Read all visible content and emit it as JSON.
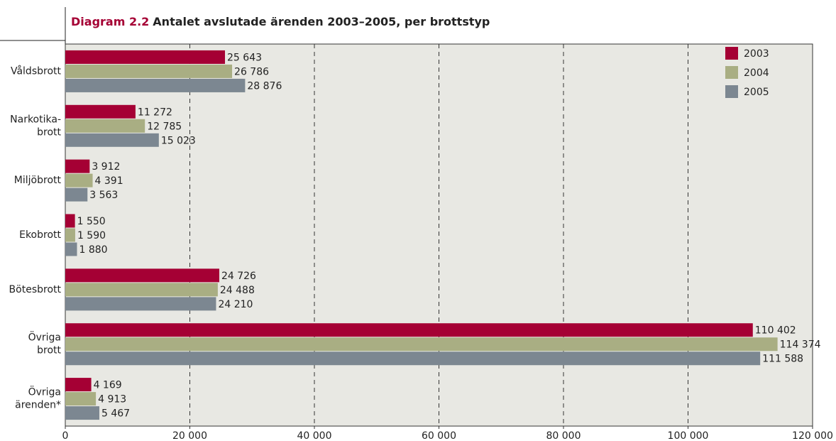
{
  "chart_data": {
    "type": "barh",
    "title_prefix": "Diagram 2.2",
    "title": "Antalet avslutade ärenden 2003–2005, per brottstyp",
    "categories": [
      [
        "Våldsbrott"
      ],
      [
        "Narkotika-",
        "brott"
      ],
      [
        "Miljöbrott"
      ],
      [
        "Ekobrott"
      ],
      [
        "Bötesbrott"
      ],
      [
        "Övriga",
        "brott"
      ],
      [
        "Övriga",
        "ärenden*"
      ]
    ],
    "series": [
      {
        "name": "2003",
        "color": "#a50034",
        "values": [
          25643,
          11272,
          3912,
          1550,
          24726,
          110402,
          4169
        ],
        "value_labels": [
          "25 643",
          "11 272",
          "3 912",
          "1 550",
          "24 726",
          "110 402",
          "4 169"
        ]
      },
      {
        "name": "2004",
        "color": "#a9ae83",
        "values": [
          26786,
          12785,
          4391,
          1590,
          24488,
          114374,
          4913
        ],
        "value_labels": [
          "26 786",
          "12 785",
          "4 391",
          "1 590",
          "24 488",
          "114 374",
          "4 913"
        ]
      },
      {
        "name": "2005",
        "color": "#7c8791",
        "values": [
          28876,
          15023,
          3563,
          1880,
          24210,
          111588,
          5467
        ],
        "value_labels": [
          "28 876",
          "15 023",
          "3 563",
          "1 880",
          "24 210",
          "111 588",
          "5 467"
        ]
      }
    ],
    "xlim": [
      0,
      120000
    ],
    "xticks": [
      0,
      {
        "value": 20000,
        "label": "20 000"
      },
      {
        "value": 40000,
        "label": "40 000"
      },
      {
        "value": 60000,
        "label": "60 000"
      },
      {
        "value": 80000,
        "label": "80 000"
      },
      {
        "value": 100000,
        "label": "100 000"
      },
      {
        "value": 120000,
        "label": "120 000"
      }
    ],
    "grid": true,
    "legend": "upper right"
  }
}
